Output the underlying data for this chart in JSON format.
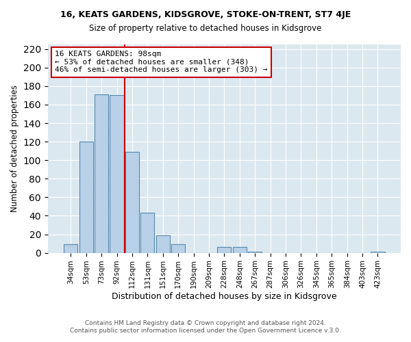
{
  "title": "16, KEATS GARDENS, KIDSGROVE, STOKE-ON-TRENT, ST7 4JE",
  "subtitle": "Size of property relative to detached houses in Kidsgrove",
  "xlabel": "Distribution of detached houses by size in Kidsgrove",
  "ylabel": "Number of detached properties",
  "bar_labels": [
    "34sqm",
    "53sqm",
    "73sqm",
    "92sqm",
    "112sqm",
    "131sqm",
    "151sqm",
    "170sqm",
    "190sqm",
    "209sqm",
    "228sqm",
    "248sqm",
    "267sqm",
    "287sqm",
    "306sqm",
    "326sqm",
    "345sqm",
    "365sqm",
    "384sqm",
    "403sqm",
    "423sqm"
  ],
  "bar_values": [
    9,
    120,
    171,
    170,
    109,
    43,
    19,
    9,
    0,
    0,
    6,
    6,
    1,
    0,
    0,
    0,
    0,
    0,
    0,
    0,
    1
  ],
  "bar_color": "#b8d0e8",
  "bar_edge_color": "#5588aa",
  "vline_x": 3.5,
  "vline_color": "#cc0000",
  "annotation_title": "16 KEATS GARDENS: 98sqm",
  "annotation_line1": "← 53% of detached houses are smaller (348)",
  "annotation_line2": "46% of semi-detached houses are larger (303) →",
  "annotation_box_color": "#ffffff",
  "annotation_border_color": "#cc0000",
  "ylim": [
    0,
    225
  ],
  "yticks": [
    0,
    20,
    40,
    60,
    80,
    100,
    120,
    140,
    160,
    180,
    200,
    220
  ],
  "footer1": "Contains HM Land Registry data © Crown copyright and database right 2024.",
  "footer2": "Contains public sector information licensed under the Open Government Licence v.3.0.",
  "fig_bg_color": "#ffffff",
  "plot_bg_color": "#dce8f0"
}
